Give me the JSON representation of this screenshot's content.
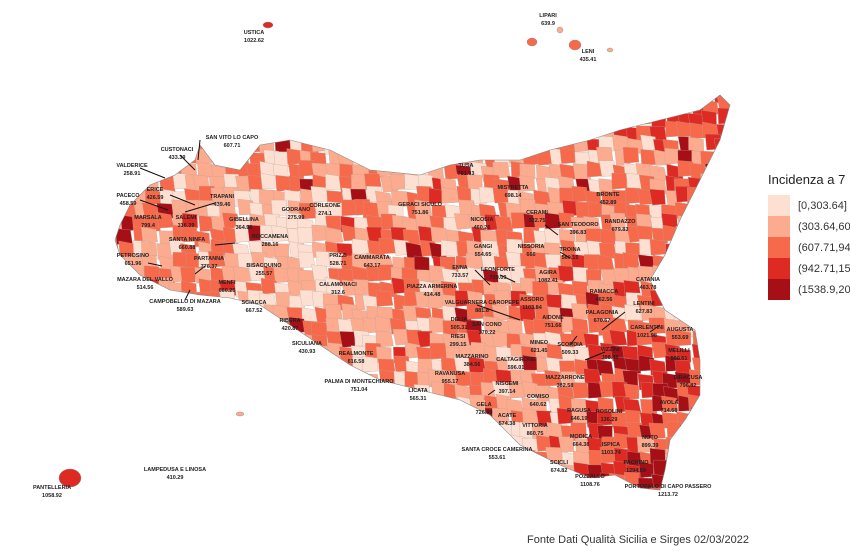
{
  "legend": {
    "title": "Incidenza a 7",
    "items": [
      {
        "label": "[0,303.64]",
        "color": "#fde0d2"
      },
      {
        "label": "(303.64,60",
        "color": "#fcab8e"
      },
      {
        "label": "(607.71,94",
        "color": "#f6694a"
      },
      {
        "label": "(942.71,15",
        "color": "#dd2b24"
      },
      {
        "label": "(1538.9,20",
        "color": "#a50f15"
      }
    ]
  },
  "source": "Fonte Dati Qualità Sicilia e Sirges 02/03/2022",
  "municipalities": [
    {
      "name": "USTICA",
      "value": "1022.62"
    },
    {
      "name": "LIPARI",
      "value": "639.9"
    },
    {
      "name": "LENI",
      "value": "435.41"
    },
    {
      "name": "SAN VITO LO CAPO",
      "value": "607.71"
    },
    {
      "name": "CUSTONACI",
      "value": "433.39"
    },
    {
      "name": "VALDERICE",
      "value": "258.91"
    },
    {
      "name": "ERICE",
      "value": "426.59"
    },
    {
      "name": "PACECO",
      "value": "458.59"
    },
    {
      "name": "TRAPANI",
      "value": "439.46"
    },
    {
      "name": "GODRANO",
      "value": "275.99"
    },
    {
      "name": "MARSALA",
      "value": "799.4"
    },
    {
      "name": "SALEMI",
      "value": "316.39"
    },
    {
      "name": "GIBELLINA",
      "value": "364.96"
    },
    {
      "name": "ROCCAMENA",
      "value": "288.16"
    },
    {
      "name": "CORLEONE",
      "value": "274.1"
    },
    {
      "name": "SANTA NINFA",
      "value": "660.88"
    },
    {
      "name": "PETROSINO",
      "value": "651.96"
    },
    {
      "name": "PARTANNA",
      "value": "776.37"
    },
    {
      "name": "BISACQUINO",
      "value": "255.57"
    },
    {
      "name": "PRIZZI",
      "value": "528.71"
    },
    {
      "name": "CAMMARATA",
      "value": "643.17"
    },
    {
      "name": "CALAMONACI",
      "value": "312.6"
    },
    {
      "name": "MAZARA DEL VALLO",
      "value": "514.56"
    },
    {
      "name": "MENFI",
      "value": "660.25"
    },
    {
      "name": "CAMPOBELLO DI MAZARA",
      "value": "589.63"
    },
    {
      "name": "SCIACCA",
      "value": "667.52"
    },
    {
      "name": "RIBERA",
      "value": "420.87"
    },
    {
      "name": "SICULIANA",
      "value": "430.93"
    },
    {
      "name": "REALMONTE",
      "value": "616.58"
    },
    {
      "name": "PALMA DI MONTECHIARO",
      "value": "751.04"
    },
    {
      "name": "LICATA",
      "value": "565.31"
    },
    {
      "name": "TUSA",
      "value": "781.03"
    },
    {
      "name": "MISTRETTA",
      "value": "698.14"
    },
    {
      "name": "GERACI SICULO",
      "value": "751.86"
    },
    {
      "name": "NICOSIA",
      "value": "460.26"
    },
    {
      "name": "CERAMI",
      "value": "322.75"
    },
    {
      "name": "SAN TEODORO",
      "value": "396.83"
    },
    {
      "name": "GANGI",
      "value": "554.65"
    },
    {
      "name": "NISSORIA",
      "value": "666"
    },
    {
      "name": "TROINA",
      "value": "560.15"
    },
    {
      "name": "ENNA",
      "value": "733.57"
    },
    {
      "name": "LEONFORTE",
      "value": "739.09"
    },
    {
      "name": "AGIRA",
      "value": "1082.41"
    },
    {
      "name": "BRONTE",
      "value": "452.89"
    },
    {
      "name": "RANDAZZO",
      "value": "679.83"
    },
    {
      "name": "PIAZZA ARMERINA",
      "value": "414.48"
    },
    {
      "name": "VALGUARNERA CAROPEPE",
      "value": "881.8"
    },
    {
      "name": "ASSORO",
      "value": "1103.84"
    },
    {
      "name": "RAMACCA",
      "value": "462.56"
    },
    {
      "name": "CATANIA",
      "value": "463.78"
    },
    {
      "name": "LENTINI",
      "value": "627.83"
    },
    {
      "name": "PALAGONIA",
      "value": "670.67"
    },
    {
      "name": "DELIA",
      "value": "505.31"
    },
    {
      "name": "AIDONE",
      "value": "751.66"
    },
    {
      "name": "CARLENTINI",
      "value": "1021.98"
    },
    {
      "name": "AUGUSTA",
      "value": "553.69"
    },
    {
      "name": "SAN CONO",
      "value": "370.22"
    },
    {
      "name": "RIESI",
      "value": "299.15"
    },
    {
      "name": "MINEO",
      "value": "621.45"
    },
    {
      "name": "SCORDIA",
      "value": "509.33"
    },
    {
      "name": "VIZZINI",
      "value": "398.48"
    },
    {
      "name": "MELILLI",
      "value": "590.61"
    },
    {
      "name": "MAZZARINO",
      "value": "384.56"
    },
    {
      "name": "CALTAGIRONE",
      "value": "596.01"
    },
    {
      "name": "RAVANUSA",
      "value": "955.17"
    },
    {
      "name": "MAZZARRONE",
      "value": "382.58"
    },
    {
      "name": "SIRACUSA",
      "value": "796.82"
    },
    {
      "name": "NISCEMI",
      "value": "397.14"
    },
    {
      "name": "GELA",
      "value": "726.99"
    },
    {
      "name": "COMISO",
      "value": "640.62"
    },
    {
      "name": "AVOLA",
      "value": "714.68"
    },
    {
      "name": "ACATE",
      "value": "574.38"
    },
    {
      "name": "RAGUSA",
      "value": "646.19"
    },
    {
      "name": "ROSOLINI",
      "value": "136.29"
    },
    {
      "name": "VITTORIA",
      "value": "860.75"
    },
    {
      "name": "MODICA",
      "value": "664.38"
    },
    {
      "name": "ISPICA",
      "value": "1103.74"
    },
    {
      "name": "NOTO",
      "value": "899.39"
    },
    {
      "name": "SANTA CROCE CAMERINA",
      "value": "553.61"
    },
    {
      "name": "SCICLI",
      "value": "674.82"
    },
    {
      "name": "PACHINO",
      "value": "1294.59"
    },
    {
      "name": "POZZALLO",
      "value": "1108.76"
    },
    {
      "name": "PORTOPALO DI CAPO PASSERO",
      "value": "1213.72"
    },
    {
      "name": "LAMPEDUSA E LINOSA",
      "value": "410.29"
    },
    {
      "name": "PANTELLERIA",
      "value": "1058.92"
    }
  ]
}
